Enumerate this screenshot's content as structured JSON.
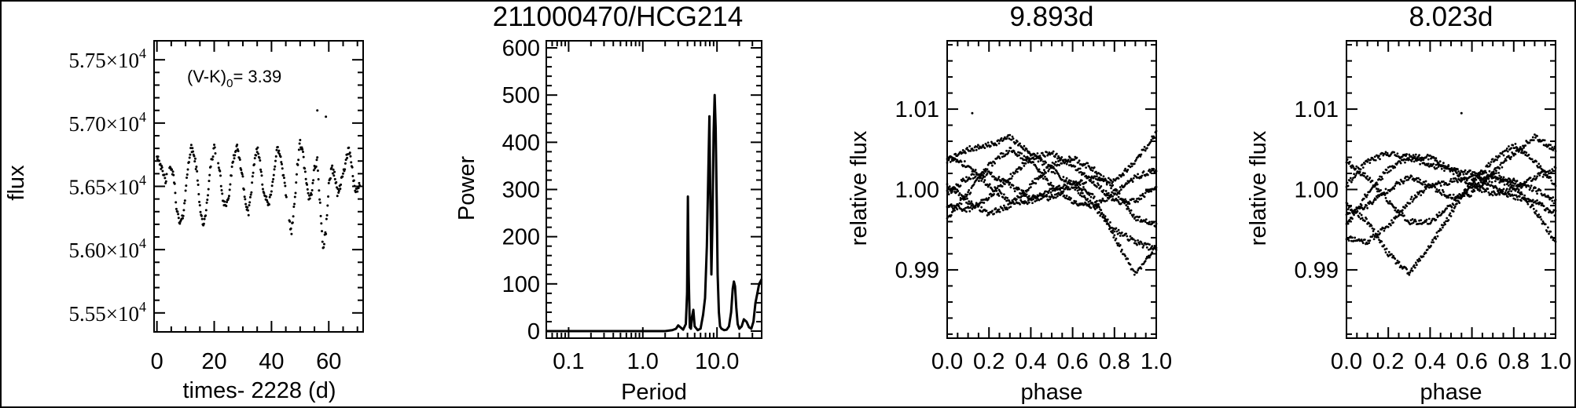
{
  "figure_title": "211000470/HCG214",
  "chart_data": [
    {
      "type": "scatter",
      "panel": "light-curve",
      "title": "",
      "xlabel": "times- 2228 (d)",
      "ylabel": "flux",
      "xlim": [
        -1,
        72
      ],
      "ylim": [
        55350,
        57650
      ],
      "xticks": [
        0,
        20,
        40,
        60
      ],
      "yticks": [
        {
          "value": 55500,
          "mantissa": "5.55",
          "exp": "4"
        },
        {
          "value": 56000,
          "mantissa": "5.60",
          "exp": "4"
        },
        {
          "value": 56500,
          "mantissa": "5.65",
          "exp": "4"
        },
        {
          "value": 57000,
          "mantissa": "5.70",
          "exp": "4"
        },
        {
          "value": 57500,
          "mantissa": "5.75",
          "exp": "4"
        }
      ],
      "annotation": {
        "prefix": "(V-K)",
        "sub": "0",
        "suffix": "= 3.39"
      },
      "series": [
        {
          "x": [
            0,
            1,
            2,
            3,
            4,
            5,
            6,
            7,
            8,
            9,
            10,
            11,
            12,
            13,
            14,
            15,
            16,
            17,
            18,
            19,
            20,
            21,
            22,
            23,
            24,
            25,
            26,
            27,
            28,
            29,
            30,
            31,
            32,
            33,
            34,
            35,
            36,
            37,
            38,
            39,
            40,
            41,
            42,
            43,
            44,
            45,
            46,
            47,
            48,
            49,
            50,
            51,
            52,
            53,
            54,
            55,
            56,
            57,
            58,
            59,
            60,
            61,
            62,
            63,
            64,
            65,
            66,
            67,
            68,
            69,
            70,
            71
          ],
          "y": [
            56750,
            56700,
            56600,
            56550,
            56600,
            56650,
            56550,
            56300,
            56200,
            56250,
            56450,
            56700,
            56800,
            56750,
            56600,
            56350,
            56200,
            56250,
            56500,
            56700,
            56800,
            56750,
            56600,
            56400,
            56350,
            56400,
            56600,
            56750,
            56800,
            56700,
            56550,
            56350,
            56300,
            56450,
            56700,
            56800,
            56700,
            56500,
            56400,
            56350,
            56450,
            56650,
            56800,
            56750,
            56600,
            56450,
            56250,
            56150,
            56350,
            56650,
            56850,
            56750,
            56550,
            56400,
            56450,
            56650,
            56700,
            56350,
            56000,
            56150,
            56500,
            56650,
            56600,
            56450,
            56500,
            56600,
            56700,
            56800,
            56650,
            56500,
            56450,
            56550
          ]
        }
      ],
      "outliers": [
        {
          "x": 56,
          "y": 57100
        },
        {
          "x": 59,
          "y": 57050
        }
      ]
    },
    {
      "type": "line",
      "panel": "periodogram",
      "title": "",
      "xlabel": "Period",
      "ylabel": "Power",
      "xscale": "log",
      "xlim": [
        0.05,
        40
      ],
      "ylim": [
        -15,
        615
      ],
      "xticks": [
        {
          "value": 0.1,
          "label": "0.1"
        },
        {
          "value": 1,
          "label": "1.0"
        },
        {
          "value": 10,
          "label": "10.0"
        }
      ],
      "yticks": [
        0,
        100,
        200,
        300,
        400,
        500,
        600
      ],
      "series": [
        {
          "x": [
            0.05,
            0.1,
            0.5,
            1.0,
            2.0,
            2.5,
            2.8,
            3.0,
            3.5,
            3.8,
            3.95,
            4.05,
            4.15,
            4.3,
            4.45,
            4.6,
            4.8,
            5.0,
            5.5,
            6.0,
            6.5,
            6.9,
            7.3,
            7.6,
            7.9,
            8.1,
            8.4,
            8.7,
            9.0,
            9.3,
            9.6,
            9.9,
            10.2,
            10.6,
            11.0,
            11.5,
            12.5,
            13.5,
            14.5,
            15.5,
            16.3,
            16.9,
            17.5,
            18.2,
            19.0,
            20.0,
            21.5,
            23.0,
            25.0,
            27.0,
            29.0,
            31.0,
            33.0,
            35.0,
            37.0,
            40.0
          ],
          "y": [
            0,
            0,
            0,
            0,
            0,
            2,
            5,
            12,
            3,
            15,
            80,
            285,
            120,
            8,
            5,
            30,
            45,
            10,
            2,
            5,
            35,
            70,
            180,
            320,
            455,
            300,
            120,
            240,
            420,
            500,
            430,
            280,
            120,
            40,
            10,
            5,
            2,
            3,
            10,
            40,
            90,
            105,
            95,
            50,
            15,
            5,
            10,
            25,
            20,
            8,
            5,
            20,
            60,
            80,
            100,
            110
          ]
        }
      ]
    },
    {
      "type": "scatter",
      "panel": "phase-fold-1",
      "title": "9.893d",
      "xlabel": "phase",
      "ylabel": "relative flux",
      "xlim": [
        0,
        1
      ],
      "ylim": [
        0.9815,
        1.0185
      ],
      "xticks": [
        {
          "value": 0,
          "label": "0.0"
        },
        {
          "value": 0.2,
          "label": "0.2"
        },
        {
          "value": 0.4,
          "label": "0.4"
        },
        {
          "value": 0.6,
          "label": "0.6"
        },
        {
          "value": 0.8,
          "label": "0.8"
        },
        {
          "value": 1.0,
          "label": "1.0"
        }
      ],
      "yticks": [
        {
          "value": 0.99,
          "label": "0.99"
        },
        {
          "value": 1.0,
          "label": "1.00"
        },
        {
          "value": 1.01,
          "label": "1.01"
        }
      ],
      "series": [
        {
          "x": [
            0,
            0.1,
            0.2,
            0.3,
            0.4,
            0.5,
            0.6,
            0.7,
            0.8,
            0.9,
            1.0
          ],
          "y": [
            1.0035,
            1.005,
            1.0055,
            1.0065,
            1.0045,
            1.0025,
            1.0005,
            0.998,
            0.995,
            0.9935,
            0.9925
          ]
        },
        {
          "x": [
            0,
            0.1,
            0.2,
            0.3,
            0.4,
            0.5,
            0.6,
            0.7,
            0.8,
            0.9,
            1.0
          ],
          "y": [
            0.998,
            0.9975,
            0.999,
            1.0015,
            1.004,
            1.0045,
            1.003,
            1.001,
            0.9985,
            0.9985,
            1.0005
          ]
        },
        {
          "x": [
            0,
            0.1,
            0.2,
            0.3,
            0.4,
            0.5,
            0.6,
            0.7,
            0.8,
            0.9,
            1.0
          ],
          "y": [
            1.0005,
            0.9985,
            0.997,
            0.998,
            1.0005,
            1.003,
            1.004,
            1.0025,
            1.0,
            0.9965,
            0.9955
          ]
        },
        {
          "x": [
            0,
            0.1,
            0.2,
            0.3,
            0.4,
            0.5,
            0.6,
            0.7,
            0.8,
            0.9,
            1.0
          ],
          "y": [
            0.9965,
            0.9995,
            1.003,
            1.005,
            1.0035,
            1.0005,
            0.9985,
            0.998,
            0.9995,
            1.0015,
            1.0025
          ]
        },
        {
          "x": [
            0,
            0.1,
            0.2,
            0.3,
            0.4,
            0.5,
            0.6,
            0.7,
            0.8,
            0.9,
            1.0
          ],
          "y": [
            1.004,
            1.003,
            1.0005,
            0.9985,
            0.9985,
            1.0,
            1.001,
            0.999,
            0.994,
            0.9895,
            0.993
          ]
        },
        {
          "x": [
            0,
            0.1,
            0.2,
            0.3,
            0.4,
            0.5,
            0.6,
            0.7,
            0.8,
            0.9,
            1.0
          ],
          "y": [
            0.9995,
            1.0015,
            1.002,
            1.0005,
            0.999,
            0.999,
            1.0005,
            1.0015,
            1.001,
            1.0035,
            1.007
          ]
        }
      ],
      "outliers": [
        {
          "x": 0.12,
          "y": 1.0095
        }
      ]
    },
    {
      "type": "scatter",
      "panel": "phase-fold-2",
      "title": "8.023d",
      "xlabel": "phase",
      "ylabel": "relative flux",
      "xlim": [
        0,
        1
      ],
      "ylim": [
        0.9815,
        1.0185
      ],
      "xticks": [
        {
          "value": 0,
          "label": "0.0"
        },
        {
          "value": 0.2,
          "label": "0.2"
        },
        {
          "value": 0.4,
          "label": "0.4"
        },
        {
          "value": 0.6,
          "label": "0.6"
        },
        {
          "value": 0.8,
          "label": "0.8"
        },
        {
          "value": 1.0,
          "label": "1.0"
        }
      ],
      "yticks": [
        {
          "value": 0.99,
          "label": "0.99"
        },
        {
          "value": 1.0,
          "label": "1.00"
        },
        {
          "value": 1.01,
          "label": "1.01"
        }
      ],
      "series": [
        {
          "x": [
            0,
            0.1,
            0.2,
            0.3,
            0.4,
            0.5,
            0.6,
            0.7,
            0.8,
            0.9,
            1.0
          ],
          "y": [
            0.994,
            0.9935,
            0.9955,
            0.9985,
            1.0005,
            1.001,
            1.0015,
            1.002,
            1.001,
            1.0,
            0.9985
          ]
        },
        {
          "x": [
            0,
            0.1,
            0.2,
            0.3,
            0.4,
            0.5,
            0.6,
            0.7,
            0.8,
            0.9,
            1.0
          ],
          "y": [
            1.0005,
            1.0035,
            1.0045,
            1.004,
            1.003,
            1.0025,
            1.002,
            1.0005,
            0.999,
            0.9985,
            0.997
          ]
        },
        {
          "x": [
            0,
            0.1,
            0.2,
            0.3,
            0.4,
            0.5,
            0.6,
            0.7,
            0.8,
            0.9,
            1.0
          ],
          "y": [
            0.998,
            0.996,
            0.992,
            0.9895,
            0.993,
            0.997,
            1.001,
            1.0035,
            1.0055,
            1.0035,
            1.0005
          ]
        },
        {
          "x": [
            0,
            0.1,
            0.2,
            0.3,
            0.4,
            0.5,
            0.6,
            0.7,
            0.8,
            0.9,
            1.0
          ],
          "y": [
            0.997,
            0.998,
            1.0,
            1.0015,
            1.0005,
            0.999,
            0.9995,
            1.002,
            1.0045,
            1.0065,
            1.005
          ]
        },
        {
          "x": [
            0,
            0.1,
            0.2,
            0.3,
            0.4,
            0.5,
            0.6,
            0.7,
            0.8,
            0.9,
            1.0
          ],
          "y": [
            1.0035,
            1.0015,
            0.9985,
            0.996,
            0.996,
            0.998,
            1.0005,
            1.0015,
            1.0005,
            0.9975,
            0.9935
          ]
        },
        {
          "x": [
            0,
            0.1,
            0.2,
            0.3,
            0.4,
            0.5,
            0.6,
            0.7,
            0.8,
            0.9,
            1.0
          ],
          "y": [
            0.9955,
            0.9995,
            1.0025,
            1.004,
            1.004,
            1.0025,
            1.0005,
            0.9995,
            1.0,
            1.0015,
            1.0025
          ]
        }
      ],
      "outliers": [
        {
          "x": 0.55,
          "y": 1.0095
        }
      ]
    }
  ]
}
